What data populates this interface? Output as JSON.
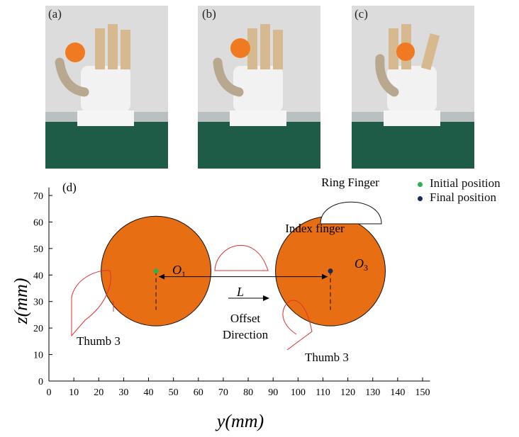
{
  "panels": [
    {
      "label": "(a)"
    },
    {
      "label": "(b)"
    },
    {
      "label": "(c)"
    }
  ],
  "plot": {
    "panel_label": "(d)",
    "xlabel_var": "y",
    "xlabel_unit": "(mm)",
    "ylabel_var": "z",
    "ylabel_unit": "(mm)",
    "x_ticks": [
      "0",
      "10",
      "20",
      "30",
      "40",
      "50",
      "60",
      "70",
      "80",
      "90",
      "100",
      "110",
      "120",
      "130",
      "140",
      "150"
    ],
    "y_ticks": [
      "0",
      "10",
      "20",
      "30",
      "40",
      "50",
      "60",
      "70"
    ],
    "annotations": {
      "index_finger": "Index finger",
      "ring_finger": "Ring Finger",
      "thumb_left": "Thumb 3",
      "thumb_right": "Thumb 3",
      "offset_line1": "Offset",
      "offset_line2": "Direction",
      "L": "L",
      "O1": "O",
      "O1_sub": "1",
      "O3": "O",
      "O3_sub": "3"
    },
    "legend": [
      {
        "label": "Initial position",
        "color": "#2bb24c"
      },
      {
        "label": "Final position",
        "color": "#1a2a5a"
      }
    ]
  },
  "chart_data": {
    "type": "scatter",
    "xlim": [
      0,
      150
    ],
    "ylim": [
      0,
      70
    ],
    "series": [
      {
        "name": "Initial position",
        "x": [
          43
        ],
        "y": [
          41.5
        ],
        "color": "#2bb24c"
      },
      {
        "name": "Final position",
        "x": [
          113
        ],
        "y": [
          41.5
        ],
        "color": "#1a2a5a"
      }
    ],
    "circles": [
      {
        "center": [
          43,
          41.5
        ],
        "radius": 21
      },
      {
        "center": [
          113,
          41.5
        ],
        "radius": 21
      }
    ],
    "colors": {
      "ball": "#e86e14",
      "finger": "#e03030",
      "axis": "#000000"
    }
  }
}
